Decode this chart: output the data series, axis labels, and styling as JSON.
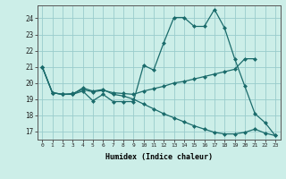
{
  "xlabel": "Humidex (Indice chaleur)",
  "bg_color": "#cceee8",
  "grid_color": "#99cccc",
  "line_color": "#1a6b6b",
  "xlim": [
    -0.5,
    23.5
  ],
  "ylim": [
    16.5,
    24.8
  ],
  "yticks": [
    17,
    18,
    19,
    20,
    21,
    22,
    23,
    24
  ],
  "xticks": [
    0,
    1,
    2,
    3,
    4,
    5,
    6,
    7,
    8,
    9,
    10,
    11,
    12,
    13,
    14,
    15,
    16,
    17,
    18,
    19,
    20,
    21,
    22,
    23
  ],
  "line1_x": [
    0,
    1,
    2,
    3,
    4,
    5,
    6,
    7,
    8,
    9,
    10,
    11,
    12,
    13,
    14,
    15,
    16,
    17,
    18,
    19,
    20,
    21,
    22,
    23
  ],
  "line1_y": [
    21.0,
    19.4,
    19.3,
    19.3,
    19.5,
    18.9,
    19.3,
    18.85,
    18.85,
    18.85,
    21.1,
    20.8,
    22.5,
    24.05,
    24.05,
    23.5,
    23.5,
    24.55,
    23.4,
    21.5,
    19.8,
    18.1,
    17.55,
    16.75
  ],
  "line2_x": [
    0,
    1,
    2,
    3,
    4,
    5,
    6,
    7,
    8,
    9,
    10,
    11,
    12,
    13,
    14,
    15,
    16,
    17,
    18,
    19,
    20,
    21
  ],
  "line2_y": [
    21.0,
    19.4,
    19.3,
    19.35,
    19.6,
    19.45,
    19.55,
    19.4,
    19.35,
    19.3,
    19.5,
    19.65,
    19.8,
    20.0,
    20.1,
    20.25,
    20.4,
    20.55,
    20.7,
    20.85,
    21.5,
    21.5
  ],
  "line3_x": [
    0,
    1,
    2,
    3,
    4,
    5,
    6,
    7,
    8,
    9,
    10,
    11,
    12,
    13,
    14,
    15,
    16,
    17,
    18,
    19,
    20,
    21,
    22,
    23
  ],
  "line3_y": [
    21.0,
    19.4,
    19.3,
    19.3,
    19.7,
    19.5,
    19.6,
    19.3,
    19.2,
    19.0,
    18.7,
    18.4,
    18.1,
    17.85,
    17.6,
    17.35,
    17.15,
    16.95,
    16.85,
    16.85,
    16.95,
    17.15,
    16.9,
    16.75
  ]
}
